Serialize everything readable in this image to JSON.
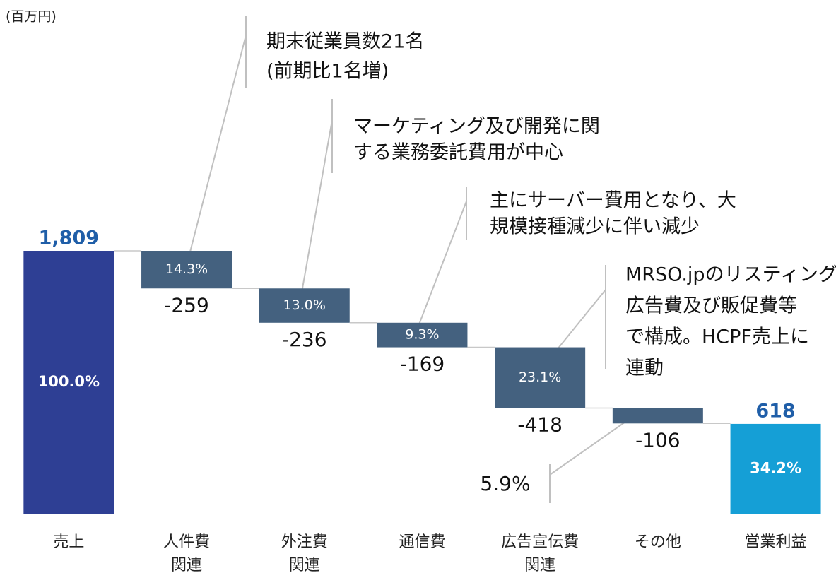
{
  "chart_data": {
    "type": "waterfall",
    "unit_label": "(百万円)",
    "categories": [
      [
        "売上"
      ],
      [
        "人件費",
        "関連"
      ],
      [
        "外注費",
        "関連"
      ],
      [
        "通信費"
      ],
      [
        "広告宣伝費",
        "関連"
      ],
      [
        "その他"
      ],
      [
        "営業利益"
      ]
    ],
    "values": [
      1809,
      -259,
      -236,
      -169,
      -418,
      -106,
      618
    ],
    "value_labels": [
      "1,809",
      "-259",
      "-236",
      "-169",
      "-418",
      "-106",
      "618"
    ],
    "share_labels": [
      "100.0%",
      "14.3%",
      "13.0%",
      "9.3%",
      "23.1%",
      "5.9%",
      "34.2%"
    ],
    "colors": {
      "start": "#2e3f94",
      "decrease": "#44617f",
      "total": "#159fd6",
      "total_label": "#1f5ea8"
    },
    "annotations": [
      [
        "期末従業員数21名",
        "(前期比1名増)"
      ],
      [
        "マーケティング及び開発に関",
        "する業務委託費用が中心"
      ],
      [
        "主にサーバー費用となり、大",
        "規模接種減少に伴い減少"
      ],
      [
        "MRSO.jpのリスティング",
        "広告費及び販促費等",
        "で構成。HCPF売上に",
        "連動"
      ]
    ]
  }
}
